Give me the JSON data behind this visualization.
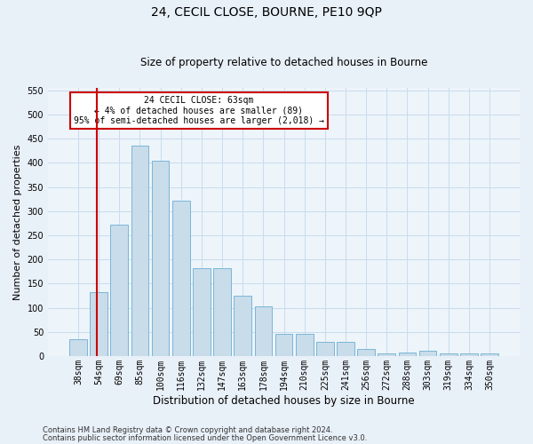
{
  "title": "24, CECIL CLOSE, BOURNE, PE10 9QP",
  "subtitle": "Size of property relative to detached houses in Bourne",
  "xlabel": "Distribution of detached houses by size in Bourne",
  "ylabel": "Number of detached properties",
  "categories": [
    "38sqm",
    "54sqm",
    "69sqm",
    "85sqm",
    "100sqm",
    "116sqm",
    "132sqm",
    "147sqm",
    "163sqm",
    "178sqm",
    "194sqm",
    "210sqm",
    "225sqm",
    "241sqm",
    "256sqm",
    "272sqm",
    "288sqm",
    "303sqm",
    "319sqm",
    "334sqm",
    "350sqm"
  ],
  "values": [
    35,
    133,
    272,
    435,
    405,
    322,
    181,
    181,
    124,
    103,
    46,
    46,
    29,
    29,
    15,
    6,
    8,
    10,
    5,
    5,
    5
  ],
  "bar_color": "#c9dcea",
  "bar_edge_color": "#7ab6d8",
  "grid_color": "#c8dced",
  "vline_color": "#cc0000",
  "vline_x_index": 1.5,
  "annotation_text": "24 CECIL CLOSE: 63sqm\n← 4% of detached houses are smaller (89)\n95% of semi-detached houses are larger (2,018) →",
  "annotation_box_color": "#ffffff",
  "annotation_box_edge": "#cc0000",
  "ylim": [
    0,
    555
  ],
  "yticks": [
    0,
    50,
    100,
    150,
    200,
    250,
    300,
    350,
    400,
    450,
    500,
    550
  ],
  "footer1": "Contains HM Land Registry data © Crown copyright and database right 2024.",
  "footer2": "Contains public sector information licensed under the Open Government Licence v3.0.",
  "bg_color": "#e8f0f8",
  "plot_bg_color": "#edf4fa",
  "title_fontsize": 10,
  "subtitle_fontsize": 8.5,
  "ylabel_fontsize": 8,
  "xlabel_fontsize": 8.5,
  "tick_fontsize": 7,
  "annotation_fontsize": 7,
  "footer_fontsize": 6
}
